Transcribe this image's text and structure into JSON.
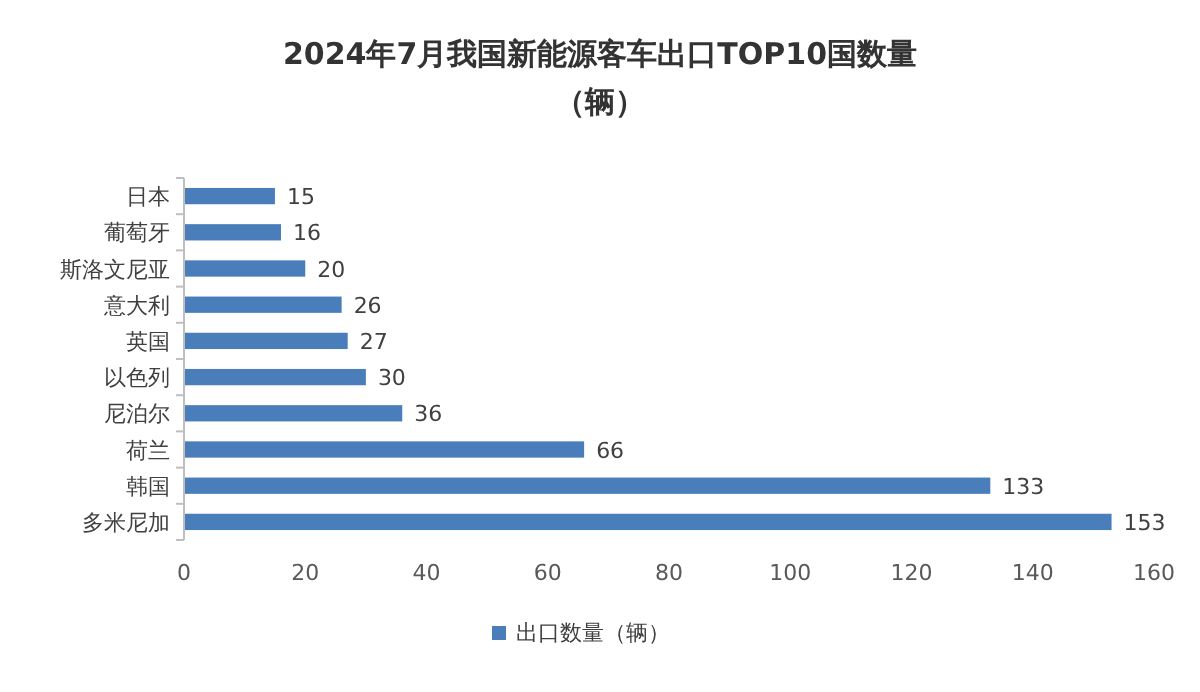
{
  "chart_data": {
    "type": "bar",
    "orientation": "horizontal",
    "title": "2024年7月我国新能源客车出口TOP10国数量",
    "subtitle": "（辆）",
    "categories": [
      "日本",
      "葡萄牙",
      "斯洛文尼亚",
      "意大利",
      "英国",
      "以色列",
      "尼泊尔",
      "荷兰",
      "韩国",
      "多米尼加"
    ],
    "series": [
      {
        "name": "出口数量（辆）",
        "color": "#4a7ebb",
        "values": [
          15,
          16,
          20,
          26,
          27,
          30,
          36,
          66,
          133,
          153
        ]
      }
    ],
    "xlim": [
      0,
      160
    ],
    "xticks": [
      0,
      20,
      40,
      60,
      80,
      100,
      120,
      140,
      160
    ],
    "data_labels": true,
    "legend": "bottom",
    "grid": false
  }
}
